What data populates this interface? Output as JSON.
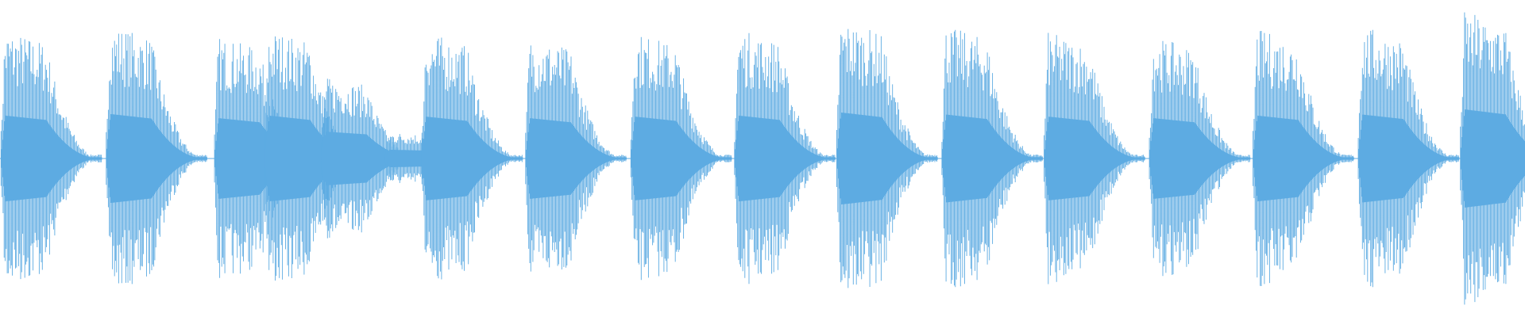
{
  "chart_data": {
    "type": "waveform",
    "x": [
      0,
      6.9,
      14.0,
      17.3,
      21.0,
      25.2,
      27.6,
      34.4,
      41.3,
      48.1,
      54.8,
      61.7,
      68.4,
      75.3,
      82.1,
      89.0,
      95.7
    ],
    "series": [
      {
        "color": "#5dabe2",
        "values": [
          0.83,
          0.86,
          0.78,
          0.83,
          0.52,
          0.17,
          0.81,
          0.78,
          0.81,
          0.83,
          0.89,
          0.85,
          0.81,
          0.78,
          0.83,
          0.85,
          0.95
        ]
      }
    ],
    "xlim": [
      0,
      100
    ],
    "ylim": [
      -1,
      1
    ]
  }
}
